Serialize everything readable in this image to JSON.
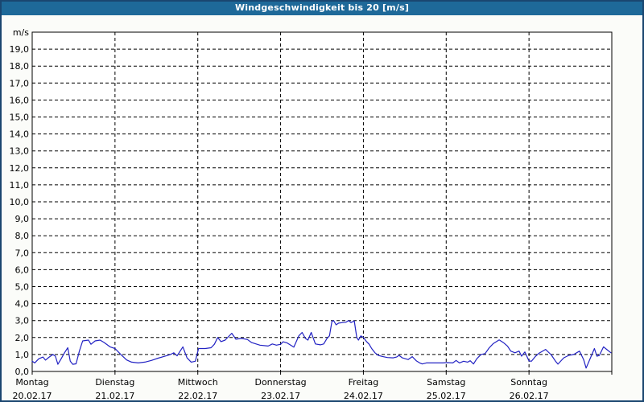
{
  "window": {
    "title": "Windgeschwindigkeit bis 20 [m/s]"
  },
  "colors": {
    "title_bar_bg": "#1e6999",
    "title_bar_text": "#ffffff",
    "outer_border": "#1a4670",
    "window_bg": "#fbfcf9",
    "plot_bg": "#ffffff",
    "grid": "#000000",
    "axis": "#000000",
    "line": "#2222c3",
    "tick_text": "#000000"
  },
  "chart_data": {
    "type": "line",
    "title": "Windgeschwindigkeit bis 20 [m/s]",
    "y_unit_label": "m/s",
    "ylim": [
      0,
      20
    ],
    "y_tick_step": 1,
    "y_tick_labels": [
      "0,0",
      "1,0",
      "2,0",
      "3,0",
      "4,0",
      "5,0",
      "6,0",
      "7,0",
      "8,0",
      "9,0",
      "10,0",
      "11,0",
      "12,0",
      "13,0",
      "14,0",
      "15,0",
      "16,0",
      "17,0",
      "18,0",
      "19,0"
    ],
    "grid": {
      "horizontal": "dashed",
      "vertical": "dashed",
      "vertical_at": "day-boundaries"
    },
    "legend": "none",
    "x_axis": {
      "days": [
        {
          "name": "Montag",
          "date": "20.02.17"
        },
        {
          "name": "Dienstag",
          "date": "21.02.17"
        },
        {
          "name": "Mittwoch",
          "date": "22.02.17"
        },
        {
          "name": "Donnerstag",
          "date": "23.02.17"
        },
        {
          "name": "Freitag",
          "date": "24.02.17"
        },
        {
          "name": "Samstag",
          "date": "25.02.17"
        },
        {
          "name": "Sonntag",
          "date": "26.02.17"
        }
      ]
    },
    "series": [
      {
        "name": "Windgeschwindigkeit",
        "unit": "m/s",
        "points_day_value": [
          [
            0.0,
            0.6
          ],
          [
            0.03,
            0.5
          ],
          [
            0.08,
            0.75
          ],
          [
            0.13,
            0.85
          ],
          [
            0.16,
            0.67
          ],
          [
            0.2,
            0.83
          ],
          [
            0.25,
            1.0
          ],
          [
            0.28,
            0.9
          ],
          [
            0.31,
            0.42
          ],
          [
            0.35,
            0.75
          ],
          [
            0.39,
            1.1
          ],
          [
            0.43,
            1.4
          ],
          [
            0.46,
            0.6
          ],
          [
            0.49,
            0.42
          ],
          [
            0.53,
            0.45
          ],
          [
            0.57,
            1.2
          ],
          [
            0.61,
            1.8
          ],
          [
            0.68,
            1.85
          ],
          [
            0.71,
            1.6
          ],
          [
            0.76,
            1.8
          ],
          [
            0.82,
            1.85
          ],
          [
            0.87,
            1.7
          ],
          [
            0.94,
            1.45
          ],
          [
            1.0,
            1.35
          ],
          [
            1.07,
            1.0
          ],
          [
            1.14,
            0.68
          ],
          [
            1.2,
            0.55
          ],
          [
            1.28,
            0.5
          ],
          [
            1.36,
            0.55
          ],
          [
            1.44,
            0.65
          ],
          [
            1.52,
            0.78
          ],
          [
            1.59,
            0.88
          ],
          [
            1.67,
            1.0
          ],
          [
            1.71,
            1.1
          ],
          [
            1.75,
            0.92
          ],
          [
            1.82,
            1.45
          ],
          [
            1.87,
            0.8
          ],
          [
            1.92,
            0.55
          ],
          [
            1.97,
            0.6
          ],
          [
            2.01,
            1.35
          ],
          [
            2.09,
            1.35
          ],
          [
            2.16,
            1.4
          ],
          [
            2.2,
            1.6
          ],
          [
            2.24,
            2.0
          ],
          [
            2.28,
            1.76
          ],
          [
            2.33,
            1.85
          ],
          [
            2.41,
            2.25
          ],
          [
            2.46,
            1.9
          ],
          [
            2.53,
            1.95
          ],
          [
            2.6,
            1.88
          ],
          [
            2.65,
            1.7
          ],
          [
            2.75,
            1.55
          ],
          [
            2.85,
            1.5
          ],
          [
            2.9,
            1.62
          ],
          [
            2.95,
            1.55
          ],
          [
            3.0,
            1.6
          ],
          [
            3.03,
            1.75
          ],
          [
            3.08,
            1.68
          ],
          [
            3.16,
            1.43
          ],
          [
            3.22,
            2.1
          ],
          [
            3.26,
            2.3
          ],
          [
            3.3,
            1.95
          ],
          [
            3.33,
            1.85
          ],
          [
            3.37,
            2.3
          ],
          [
            3.42,
            1.62
          ],
          [
            3.48,
            1.57
          ],
          [
            3.52,
            1.62
          ],
          [
            3.56,
            1.95
          ],
          [
            3.59,
            2.1
          ],
          [
            3.62,
            2.95
          ],
          [
            3.64,
            3.0
          ],
          [
            3.67,
            2.75
          ],
          [
            3.7,
            2.85
          ],
          [
            3.75,
            2.88
          ],
          [
            3.79,
            2.9
          ],
          [
            3.82,
            3.0
          ],
          [
            3.85,
            2.88
          ],
          [
            3.89,
            2.98
          ],
          [
            3.92,
            2.0
          ],
          [
            3.94,
            1.85
          ],
          [
            3.97,
            2.1
          ],
          [
            4.0,
            2.0
          ],
          [
            4.04,
            1.75
          ],
          [
            4.07,
            1.6
          ],
          [
            4.1,
            1.35
          ],
          [
            4.14,
            1.1
          ],
          [
            4.18,
            0.95
          ],
          [
            4.23,
            0.88
          ],
          [
            4.29,
            0.82
          ],
          [
            4.36,
            0.8
          ],
          [
            4.4,
            0.85
          ],
          [
            4.43,
            0.95
          ],
          [
            4.47,
            0.8
          ],
          [
            4.54,
            0.7
          ],
          [
            4.59,
            0.87
          ],
          [
            4.64,
            0.62
          ],
          [
            4.68,
            0.5
          ],
          [
            4.71,
            0.44
          ],
          [
            4.76,
            0.5
          ],
          [
            4.86,
            0.5
          ],
          [
            4.96,
            0.5
          ],
          [
            5.01,
            0.52
          ],
          [
            5.08,
            0.5
          ],
          [
            5.12,
            0.65
          ],
          [
            5.16,
            0.5
          ],
          [
            5.21,
            0.6
          ],
          [
            5.26,
            0.55
          ],
          [
            5.29,
            0.63
          ],
          [
            5.33,
            0.44
          ],
          [
            5.37,
            0.75
          ],
          [
            5.42,
            1.0
          ],
          [
            5.47,
            1.05
          ],
          [
            5.52,
            1.4
          ],
          [
            5.57,
            1.65
          ],
          [
            5.64,
            1.86
          ],
          [
            5.69,
            1.7
          ],
          [
            5.74,
            1.5
          ],
          [
            5.78,
            1.2
          ],
          [
            5.83,
            1.1
          ],
          [
            5.88,
            1.2
          ],
          [
            5.91,
            0.9
          ],
          [
            5.95,
            1.15
          ],
          [
            6.0,
            0.62
          ],
          [
            6.03,
            0.6
          ],
          [
            6.08,
            0.9
          ],
          [
            6.12,
            1.07
          ],
          [
            6.2,
            1.3
          ],
          [
            6.27,
            0.97
          ],
          [
            6.32,
            0.6
          ],
          [
            6.35,
            0.43
          ],
          [
            6.42,
            0.8
          ],
          [
            6.48,
            0.95
          ],
          [
            6.54,
            1.0
          ],
          [
            6.61,
            1.2
          ],
          [
            6.66,
            0.7
          ],
          [
            6.69,
            0.2
          ],
          [
            6.76,
            1.0
          ],
          [
            6.79,
            1.35
          ],
          [
            6.82,
            0.9
          ],
          [
            6.85,
            0.95
          ],
          [
            6.9,
            1.45
          ],
          [
            6.95,
            1.25
          ],
          [
            6.99,
            1.1
          ]
        ]
      }
    ]
  }
}
